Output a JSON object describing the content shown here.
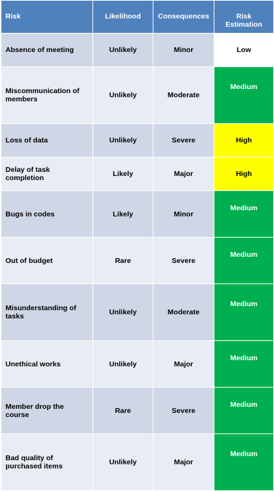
{
  "headers": {
    "risk": "Risk",
    "likelihood": "Likelihood",
    "consequences": "Consequences",
    "estimation": "Risk Estimation"
  },
  "colors": {
    "header_bg": "#4f81bd",
    "row_odd": "#cfd7e6",
    "row_even": "#e8ecf4",
    "low": "#ffffff",
    "medium": "#00b050",
    "high": "#ffff00"
  },
  "rows": [
    {
      "risk": "Absence of meeting",
      "likelihood": "Unlikely",
      "consequences": "Minor",
      "estimation": "Low",
      "level": "low"
    },
    {
      "risk": "Miscommunication of members",
      "likelihood": "Unlikely",
      "consequences": "Moderate",
      "estimation": "Medium",
      "level": "medium"
    },
    {
      "risk": "Loss of data",
      "likelihood": "Unlikely",
      "consequences": "Severe",
      "estimation": "High",
      "level": "high"
    },
    {
      "risk": "Delay of task completion",
      "likelihood": "Likely",
      "consequences": "Major",
      "estimation": "High",
      "level": "high"
    },
    {
      "risk": "Bugs in codes",
      "likelihood": "Likely",
      "consequences": "Minor",
      "estimation": "Medium",
      "level": "medium"
    },
    {
      "risk": "Out of budget",
      "likelihood": "Rare",
      "consequences": "Severe",
      "estimation": "Medium",
      "level": "medium"
    },
    {
      "risk": "Misunderstanding of tasks",
      "likelihood": "Unlikely",
      "consequences": "Moderate",
      "estimation": "Medium",
      "level": "medium"
    },
    {
      "risk": "Unethical works",
      "likelihood": "Unlikely",
      "consequences": "Major",
      "estimation": "Medium",
      "level": "medium"
    },
    {
      "risk": "Member drop the course",
      "likelihood": "Rare",
      "consequences": "Severe",
      "estimation": "Medium",
      "level": "medium"
    },
    {
      "risk": "Bad quality of purchased items",
      "likelihood": "Unlikely",
      "consequences": "Major",
      "estimation": "Medium",
      "level": "medium"
    }
  ]
}
